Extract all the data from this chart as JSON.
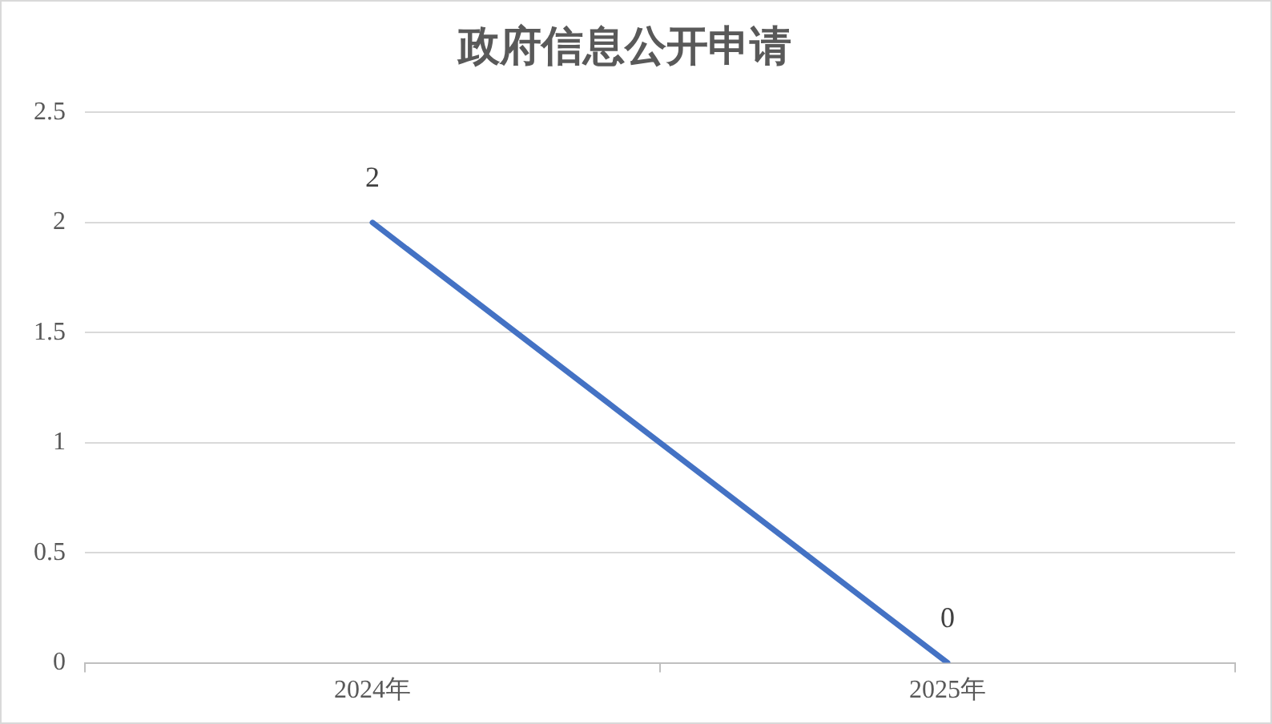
{
  "chart_data": {
    "type": "line",
    "title": "政府信息公开申请",
    "categories": [
      "2024年",
      "2025年"
    ],
    "series": [
      {
        "color": "#4472c4",
        "values": [
          2,
          0
        ]
      }
    ],
    "ylim": [
      0,
      2.5
    ],
    "yticks": [
      0,
      0.5,
      1,
      1.5,
      2,
      2.5
    ],
    "grid": "y",
    "data_labels": true,
    "marker": "none",
    "line_style": "solid",
    "legend": false
  }
}
